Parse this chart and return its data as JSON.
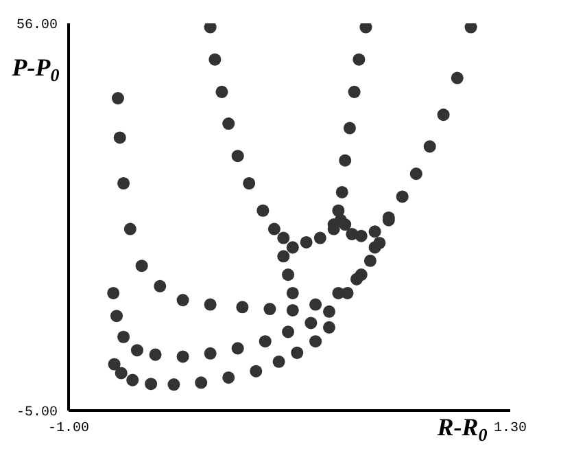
{
  "chart_data": {
    "type": "scatter",
    "xlabel": "R-R$_{0}$",
    "ylabel": "P-P$_{0}$",
    "xlim": [
      -1,
      1.3
    ],
    "ylim": [
      -5,
      56
    ],
    "xticks": [
      {
        "value": -1,
        "label": "-1.00"
      },
      {
        "value": 1.3,
        "label": "1.30"
      }
    ],
    "yticks": [
      {
        "value": -5,
        "label": "-5.00"
      },
      {
        "value": 56,
        "label": "56.00"
      }
    ],
    "grid": false,
    "legend": false,
    "marker": "circle",
    "series": [
      {
        "color": "#333333",
        "x": [
          -0.762,
          -0.726,
          -0.667,
          -0.571,
          -0.452,
          -0.31,
          -0.167,
          -0.024,
          0.095,
          0.19,
          0.286,
          0.357,
          -0.767,
          -0.75,
          -0.714,
          -0.643,
          -0.548,
          -0.405,
          -0.262,
          -0.119,
          0.024,
          0.143,
          0.262,
          0.357,
          0.452,
          0.524,
          0.571,
          0.619,
          -0.743,
          -0.733,
          -0.714,
          -0.679,
          -0.619,
          -0.524,
          -0.405,
          -0.262,
          -0.095,
          0.048,
          0.167,
          0.286,
          0.405,
          0.5,
          0.595,
          0.667,
          0.738,
          0.81,
          0.881,
          0.952,
          1.024,
          1.095,
          -0.262,
          -0.238,
          -0.202,
          -0.167,
          -0.119,
          -0.06,
          0.012,
          0.071,
          0.119,
          0.167,
          0.238,
          0.31,
          0.381,
          0.417,
          0.44,
          0.476,
          0.524,
          0.595,
          0.667,
          0.548,
          0.512,
          0.488,
          0.464,
          0.44,
          0.424,
          0.405,
          0.381,
          0.119,
          0.143,
          0.167
        ],
        "values": [
          2.3,
          0.9,
          -0.2,
          -0.8,
          -0.9,
          -0.6,
          0.2,
          1.2,
          2.7,
          4.1,
          5.9,
          8.1,
          13.5,
          9.9,
          6.6,
          4.5,
          3.8,
          3.5,
          4.0,
          4.8,
          5.9,
          7.4,
          8.8,
          10.6,
          13.5,
          16.4,
          18.6,
          21.4,
          44.2,
          38.0,
          30.8,
          23.6,
          17.8,
          14.6,
          12.4,
          11.7,
          11.3,
          11.0,
          10.8,
          11.7,
          13.5,
          15.7,
          20.7,
          25.0,
          28.7,
          32.3,
          36.6,
          41.6,
          47.4,
          55.4,
          55.4,
          50.3,
          45.2,
          40.2,
          35.1,
          30.8,
          26.5,
          23.6,
          22.2,
          20.7,
          21.5,
          22.2,
          23.6,
          25.0,
          24.3,
          22.8,
          22.5,
          23.2,
          25.4,
          55.4,
          50.3,
          45.2,
          39.5,
          34.4,
          29.4,
          26.5,
          24.3,
          19.3,
          16.4,
          13.5
        ]
      }
    ]
  }
}
